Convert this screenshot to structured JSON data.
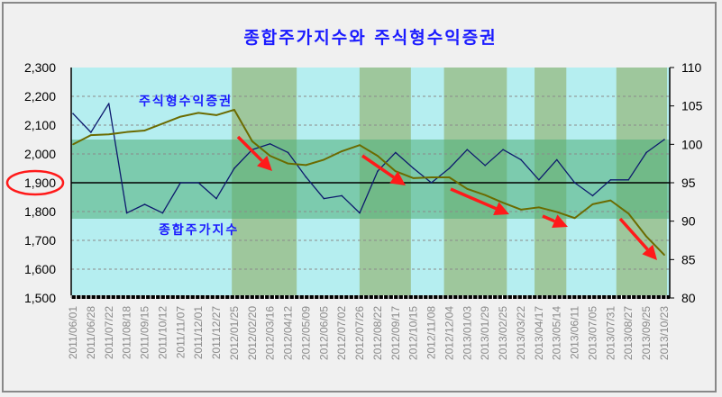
{
  "chart_data": {
    "type": "line",
    "title": "종합주가지수와 주식형수익증권",
    "x": [
      "2011/06/01",
      "2011/06/28",
      "2011/07/22",
      "2011/08/18",
      "2011/09/15",
      "2011/10/12",
      "2011/11/07",
      "2011/12/01",
      "2011/12/27",
      "2012/01/25",
      "2012/02/20",
      "2012/03/16",
      "2012/04/12",
      "2012/05/09",
      "2012/06/05",
      "2012/07/02",
      "2012/07/26",
      "2012/08/22",
      "2012/09/17",
      "2012/10/15",
      "2012/11/08",
      "2012/12/04",
      "2013/01/03",
      "2013/01/29",
      "2013/02/25",
      "2013/03/22",
      "2013/04/17",
      "2013/05/14",
      "2013/06/11",
      "2013/07/05",
      "2013/07/31",
      "2013/08/27",
      "2013/09/25",
      "2013/10/23"
    ],
    "series": [
      {
        "name": "종합주가지수",
        "axis": "left",
        "color": "#0d1a6e",
        "values": [
          2140,
          2075,
          2175,
          1795,
          1825,
          1795,
          1900,
          1900,
          1845,
          1950,
          2015,
          2035,
          2005,
          1920,
          1845,
          1855,
          1795,
          1940,
          2005,
          1950,
          1900,
          1950,
          2015,
          1960,
          2015,
          1980,
          1910,
          1980,
          1900,
          1855,
          1910,
          1910,
          2005,
          2050
        ]
      },
      {
        "name": "주식형수익증권",
        "axis": "right",
        "color": "#6b6b00",
        "values": [
          100.0,
          101.2,
          101.3,
          101.6,
          101.8,
          102.7,
          103.6,
          104.1,
          103.8,
          104.5,
          100.4,
          98.5,
          97.5,
          97.3,
          98.0,
          99.1,
          99.9,
          98.5,
          96.5,
          95.6,
          95.7,
          95.7,
          94.2,
          93.4,
          92.4,
          91.5,
          91.8,
          91.2,
          90.4,
          92.2,
          92.7,
          91.0,
          88.0,
          85.6
        ]
      }
    ],
    "y_left": {
      "range": [
        1500,
        2300
      ],
      "ticks": [
        "1,500",
        "1,600",
        "1,700",
        "1,800",
        "1,900",
        "2,000",
        "2,100",
        "2,200",
        "2,300"
      ],
      "highlighted_tick": "1,900"
    },
    "y_right": {
      "range": [
        80,
        110
      ],
      "ticks": [
        "80",
        "85",
        "90",
        "95",
        "100",
        "105",
        "110"
      ]
    },
    "reference_line": 1900,
    "horizontal_band": [
      1775,
      2050
    ],
    "shaded_periods": [
      [
        "2012/01/22",
        "2012/04/27"
      ],
      [
        "2012/07/29",
        "2012/10/13"
      ],
      [
        "2012/12/01",
        "2013/03/04"
      ],
      [
        "2013/04/14",
        "2013/05/31"
      ],
      [
        "2013/08/13",
        "2013/10/27"
      ]
    ],
    "grid": "horizontal dashed",
    "colors": {
      "plot_bg": "#b5eef0",
      "period_shade": "#9ec79c",
      "band": "#4caf78",
      "arrow": "#ff1a1a",
      "label": "#1a1aff"
    }
  }
}
